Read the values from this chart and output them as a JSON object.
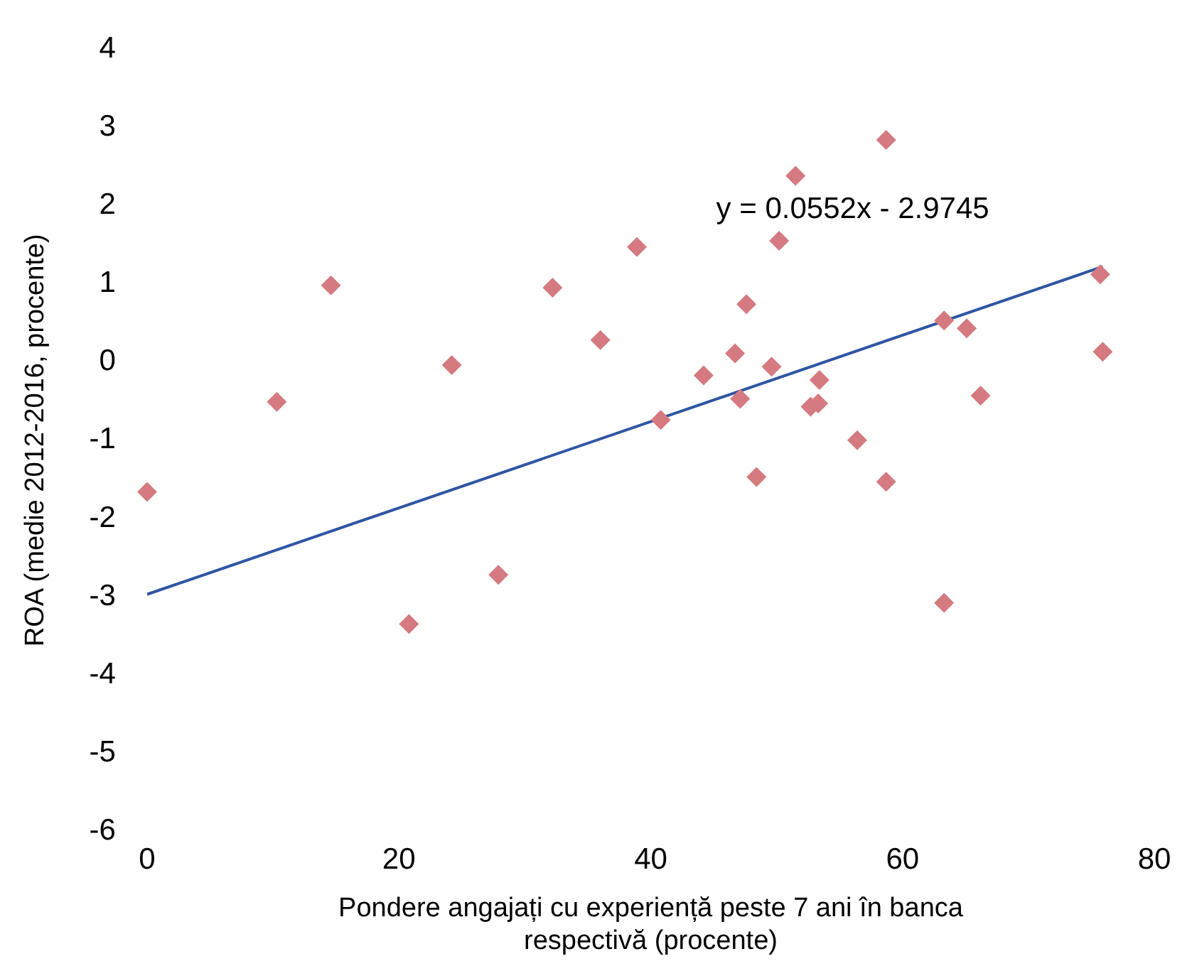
{
  "chart_data": {
    "type": "scatter",
    "xlabel": "Pondere angajați cu experiență peste 7 ani în banca respectivă (procente)",
    "ylabel": "ROA (medie 2012-2016, procente)",
    "marker": "diamond",
    "grid": false,
    "legend": false,
    "xlim": [
      0,
      80
    ],
    "xticks": [
      0,
      20,
      40,
      60,
      80
    ],
    "ylim": [
      -6,
      4
    ],
    "yticks": [
      -6,
      -5,
      -4,
      -3,
      -2,
      -1,
      0,
      1,
      2,
      3,
      4
    ],
    "annotations": [
      "y = 0.0552x - 2.9745"
    ],
    "series": [
      {
        "color": "#d47a80",
        "x": [
          0,
          10.3,
          14.6,
          20.8,
          24.2,
          27.9,
          32.2,
          36.0,
          38.9,
          40.8,
          44.2,
          46.7,
          47.1,
          47.6,
          48.4,
          49.6,
          50.2,
          51.5,
          52.7,
          53.3,
          53.4,
          56.4,
          58.7,
          58.7,
          63.3,
          63.3,
          65.1,
          66.2,
          75.7,
          75.9
        ],
        "values": [
          -1.66,
          -0.51,
          0.98,
          -3.35,
          -0.04,
          -2.72,
          0.95,
          0.28,
          1.47,
          -0.74,
          -0.17,
          0.11,
          -0.47,
          0.74,
          -1.47,
          -0.06,
          1.55,
          2.38,
          -0.57,
          -0.53,
          -0.23,
          -1.0,
          -1.53,
          2.84,
          0.53,
          -3.08,
          0.43,
          -0.43,
          1.12,
          0.13
        ]
      },
      {
        "type": "line",
        "marker": "none",
        "color": "#2f55a4",
        "x": [
          0,
          75.9
        ],
        "values": [
          -2.97,
          1.22
        ]
      }
    ]
  }
}
